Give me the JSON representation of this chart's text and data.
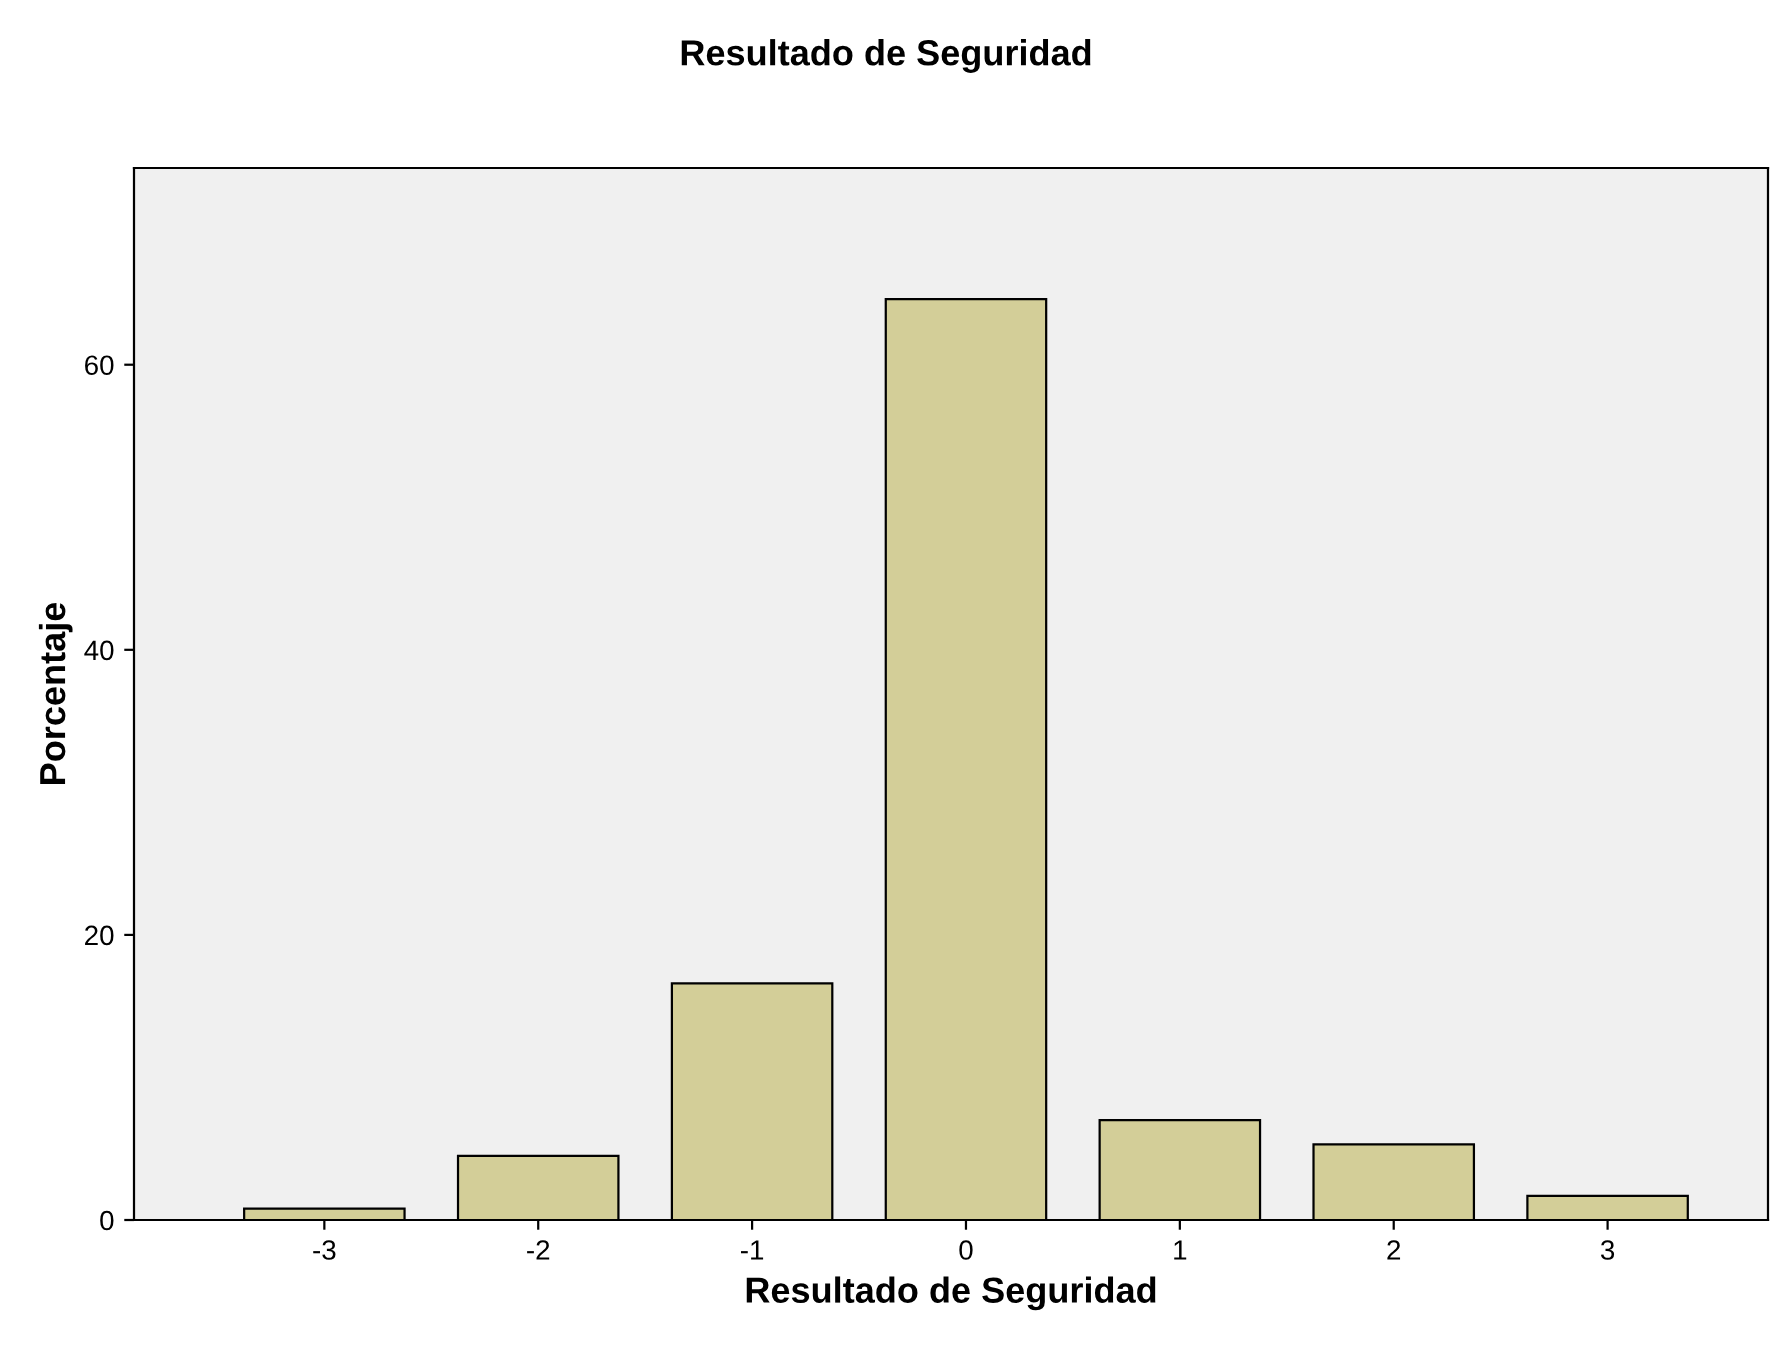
{
  "chart_data": {
    "type": "bar",
    "title": "Resultado de Seguridad",
    "xlabel": "Resultado de Seguridad",
    "ylabel": "Porcentaje",
    "categories": [
      "-3",
      "-2",
      "-1",
      "0",
      "1",
      "2",
      "3"
    ],
    "values": [
      0.8,
      4.5,
      16.6,
      64.6,
      7.0,
      5.3,
      1.7
    ],
    "color": "#d3ce98",
    "ylim": [
      0,
      73.8
    ],
    "yticks": [
      0,
      20,
      40,
      60
    ],
    "grid": false,
    "legend": false
  }
}
